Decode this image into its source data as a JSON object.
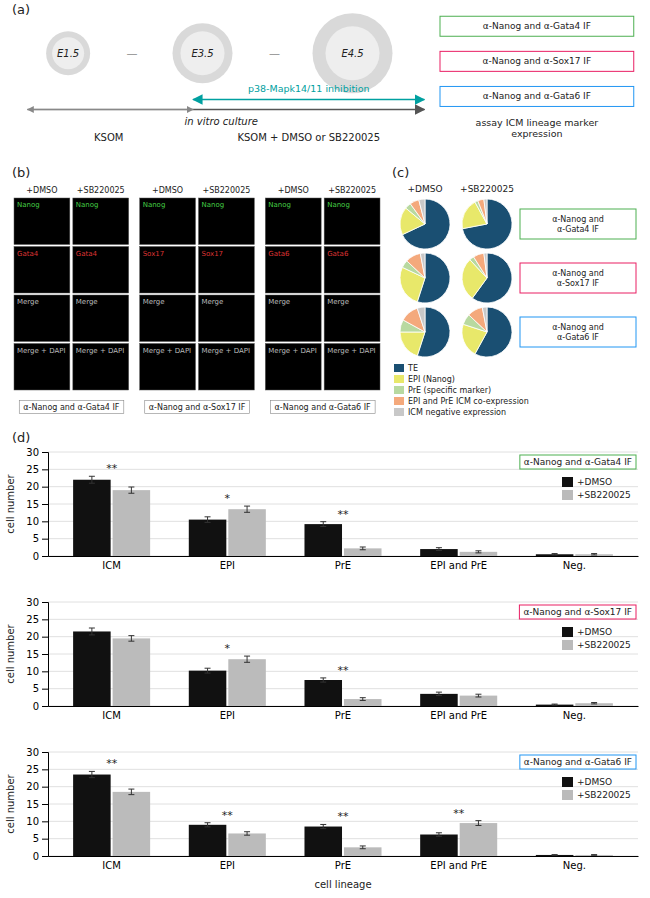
{
  "chart_data": [
    {
      "type": "diagram",
      "title": "(a)",
      "categories": [
        "E1.5",
        "E3.5",
        "E4.5"
      ],
      "annotations": [
        {
          "text": "—",
          "color": "#888888"
        },
        {
          "text": "—",
          "color": "#888888"
        },
        {
          "text": "in vitro culture"
        },
        {
          "text": "KSOM"
        },
        {
          "text": "p38-Mapk14/11 inhibition",
          "color": "#00a0a0"
        },
        {
          "text": "KSOM + DMSO or SB220025"
        },
        {
          "text": "α-Nanog and α-Gata4 IF",
          "color": "#4caf50"
        },
        {
          "text": "α-Nanog and α-Sox17 IF",
          "color": "#e91e63"
        },
        {
          "text": "α-Nanog and α-Gata6 IF",
          "color": "#2196f3"
        },
        {
          "text": "assay ICM lineage marker\nexpression"
        }
      ]
    },
    {
      "type": "image_grid",
      "title": "(b)",
      "categories": [
        "α-Nanog and α-Gata4 IF",
        "α-Nanog and α-Sox17 IF",
        "α-Nanog and α-Gata6 IF"
      ],
      "series": [
        {
          "name": "+DMSO"
        },
        {
          "name": "+SB220025"
        }
      ],
      "annotations": [
        {
          "text": "Nanog",
          "color": "#44cc44"
        },
        {
          "text": "Nanog",
          "color": "#44cc44"
        },
        {
          "text": "Nanog",
          "color": "#44cc44"
        },
        {
          "text": "Nanog",
          "color": "#44cc44"
        },
        {
          "text": "Nanog",
          "color": "#44cc44"
        },
        {
          "text": "Nanog",
          "color": "#44cc44"
        },
        {
          "text": "Gata4",
          "color": "#dd3333"
        },
        {
          "text": "Gata4",
          "color": "#dd3333"
        },
        {
          "text": "Sox17",
          "color": "#dd3333"
        },
        {
          "text": "Sox17",
          "color": "#dd3333"
        },
        {
          "text": "Gata6",
          "color": "#dd3333"
        },
        {
          "text": "Gata6",
          "color": "#dd3333"
        },
        {
          "text": "Merge",
          "color": "#bbbbbb"
        },
        {
          "text": "Merge",
          "color": "#bbbbbb"
        },
        {
          "text": "Merge",
          "color": "#bbbbbb"
        },
        {
          "text": "Merge",
          "color": "#bbbbbb"
        },
        {
          "text": "Merge",
          "color": "#bbbbbb"
        },
        {
          "text": "Merge",
          "color": "#bbbbbb"
        },
        {
          "text": "Merge + DAPI",
          "color": "#bbbbbb"
        },
        {
          "text": "Merge + DAPI",
          "color": "#bbbbbb"
        },
        {
          "text": "Merge + DAPI",
          "color": "#bbbbbb"
        },
        {
          "text": "Merge + DAPI",
          "color": "#bbbbbb"
        },
        {
          "text": "Merge + DAPI",
          "color": "#bbbbbb"
        },
        {
          "text": "Merge + DAPI",
          "color": "#bbbbbb"
        }
      ]
    },
    {
      "type": "pie",
      "title": "(c)",
      "categories": [
        "TE",
        "EPI (Nanog)",
        "PrE (specific marker)",
        "EPI and PrE ICM co-expression",
        "ICM negative expression"
      ],
      "colors": [
        "#1a4f72",
        "#e8e86a",
        "#b8d9a0",
        "#f4a97c",
        "#c8c8c8"
      ],
      "legend": "bottom",
      "series": [
        {
          "name": "+DMSO",
          "values": [
            68,
            18,
            4,
            6,
            4
          ]
        },
        {
          "name": "+SB220025",
          "values": [
            72,
            20,
            2,
            4,
            2
          ]
        },
        {
          "values": [
            55,
            27,
            5,
            10,
            3
          ]
        },
        {
          "values": [
            60,
            28,
            3,
            7,
            2
          ]
        },
        {
          "values": [
            55,
            20,
            8,
            12,
            5
          ]
        },
        {
          "values": [
            58,
            22,
            7,
            10,
            3
          ]
        }
      ],
      "annotations": [
        {
          "text": "α-Nanog and\nα-Gata4 IF",
          "color": "#4caf50"
        },
        {
          "text": "α-Nanog and\nα-Sox17 IF",
          "color": "#e91e63"
        },
        {
          "text": "α-Nanog and\nα-Gata6 IF",
          "color": "#2196f3"
        }
      ]
    },
    {
      "type": "bar",
      "title": "(d)",
      "categories": [
        "ICM",
        "EPI",
        "PrE",
        "EPI and PrE",
        "Neg."
      ],
      "series": [
        {
          "name": "+DMSO",
          "color": "#111111",
          "values": [
            22.0,
            10.5,
            9.2,
            2.0,
            0.5
          ],
          "errors": [
            1.0,
            0.8,
            0.7,
            0.4,
            0.2
          ]
        },
        {
          "name": "+SB220025",
          "color": "#bbbbbb",
          "values": [
            19.0,
            13.5,
            2.2,
            1.2,
            0.5
          ],
          "errors": [
            0.9,
            0.9,
            0.4,
            0.3,
            0.2
          ]
        }
      ],
      "significance": [
        "**",
        "*",
        "**",
        null,
        null
      ],
      "annotations": [
        {
          "text": "α-Nanog and α-Gata4 IF",
          "color": "#4caf50"
        }
      ],
      "ylabel": "cell number",
      "ylim": [
        0,
        30
      ],
      "yticks": [
        0,
        5,
        10,
        15,
        20,
        25,
        30
      ],
      "grid": true,
      "legend": "upper right"
    },
    {
      "type": "bar",
      "categories": [
        "ICM",
        "EPI",
        "PrE",
        "EPI and PrE",
        "Neg."
      ],
      "series": [
        {
          "name": "+DMSO",
          "color": "#111111",
          "values": [
            21.5,
            10.2,
            7.5,
            3.5,
            0.4
          ],
          "errors": [
            1.0,
            0.7,
            0.6,
            0.5,
            0.15
          ]
        },
        {
          "name": "+SB220025",
          "color": "#bbbbbb",
          "values": [
            19.5,
            13.5,
            2.0,
            3.0,
            0.8
          ],
          "errors": [
            0.8,
            0.9,
            0.4,
            0.4,
            0.2
          ]
        }
      ],
      "significance": [
        null,
        "*",
        "**",
        null,
        null
      ],
      "annotations": [
        {
          "text": "α-Nanog and α-Sox17 IF",
          "color": "#e91e63"
        }
      ],
      "ylabel": "cell number",
      "ylim": [
        0,
        30
      ],
      "yticks": [
        0,
        5,
        10,
        15,
        20,
        25,
        30
      ],
      "grid": true,
      "legend": "upper right"
    },
    {
      "type": "bar",
      "categories": [
        "ICM",
        "EPI",
        "PrE",
        "EPI and PrE",
        "Neg."
      ],
      "series": [
        {
          "name": "+DMSO",
          "color": "#111111",
          "values": [
            23.5,
            9.0,
            8.5,
            6.2,
            0.3
          ],
          "errors": [
            0.9,
            0.6,
            0.6,
            0.5,
            0.1
          ]
        },
        {
          "name": "+SB220025",
          "color": "#bbbbbb",
          "values": [
            18.5,
            6.5,
            2.5,
            9.5,
            0.3
          ],
          "errors": [
            0.8,
            0.5,
            0.4,
            0.7,
            0.1
          ]
        }
      ],
      "significance": [
        "**",
        "**",
        "**",
        "**",
        null
      ],
      "annotations": [
        {
          "text": "α-Nanog and α-Gata6 IF",
          "color": "#2196f3"
        }
      ],
      "ylabel": "cell number",
      "xlabel": "cell lineage",
      "ylim": [
        0,
        30
      ],
      "yticks": [
        0,
        5,
        10,
        15,
        20,
        25,
        30
      ],
      "grid": true,
      "legend": "upper right"
    }
  ]
}
